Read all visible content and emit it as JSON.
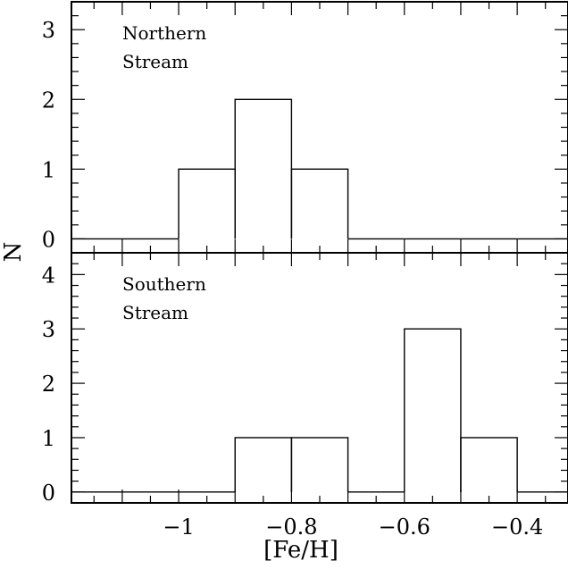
{
  "chart_data": [
    {
      "type": "bar",
      "label_lines": [
        "Northern",
        "Stream"
      ],
      "x": {
        "bin_edges": [
          -1.2,
          -1.0,
          -0.9,
          -0.8,
          -0.7,
          -0.6,
          -0.5,
          -0.4,
          -0.3
        ],
        "range": [
          -1.19,
          -0.31
        ]
      },
      "values": [
        0,
        1,
        2,
        1,
        0,
        0,
        0,
        0
      ],
      "ylim": [
        -0.2,
        3.4
      ],
      "yticks": [
        "0",
        "1",
        "2",
        "3"
      ]
    },
    {
      "type": "bar",
      "label_lines": [
        "Southern",
        "Stream"
      ],
      "x": {
        "bin_edges": [
          -1.2,
          -1.0,
          -0.9,
          -0.8,
          -0.7,
          -0.6,
          -0.5,
          -0.4,
          -0.3
        ],
        "range": [
          -1.19,
          -0.31
        ]
      },
      "values": [
        0,
        0,
        1,
        1,
        0,
        3,
        1,
        0
      ],
      "ylim": [
        -0.2,
        4.4
      ],
      "yticks": [
        "0",
        "1",
        "2",
        "3",
        "4"
      ]
    }
  ],
  "shared": {
    "xlabel": "[Fe/H]",
    "ylabel": "N",
    "xticks": [
      {
        "value": -1.0,
        "label": "−1"
      },
      {
        "value": -0.8,
        "label": "−0.8"
      },
      {
        "value": -0.6,
        "label": "−0.6"
      },
      {
        "value": -0.4,
        "label": "−0.4"
      }
    ],
    "x_minor_step": 0.05,
    "y_minor_step": 0.2,
    "line_color": "#000000"
  }
}
